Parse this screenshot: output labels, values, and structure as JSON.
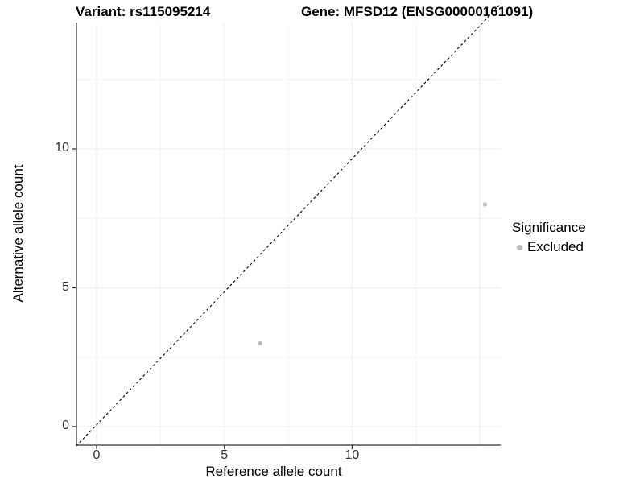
{
  "chart_data": {
    "type": "scatter",
    "titles": {
      "variant": "Variant: rs115095214",
      "gene": "Gene: MFSD12 (ENSG00000161091)"
    },
    "xlabel": "Reference allele count",
    "ylabel": "Alternative allele count",
    "x_ticks": [
      0,
      5,
      10
    ],
    "y_ticks": [
      0,
      5,
      10
    ],
    "xlim": [
      -0.8,
      15.8
    ],
    "ylim": [
      -0.7,
      15.2
    ],
    "grid": {
      "x_major": [
        0,
        5,
        10,
        15
      ],
      "x_minor": [
        2.5,
        7.5,
        12.5
      ],
      "y_major": [
        0,
        5,
        10
      ],
      "y_minor": [
        2.5,
        7.5,
        12.5
      ]
    },
    "identity_line": {
      "style": "dashed",
      "color": "#000000",
      "from": [
        -0.8,
        -0.7
      ],
      "to": [
        15.8,
        15.2
      ]
    },
    "series": [
      {
        "name": "Excluded",
        "color": "#bdbdbd",
        "points": [
          [
            6.4,
            3
          ],
          [
            15.2,
            8
          ]
        ]
      }
    ],
    "legend": {
      "title": "Significance",
      "position": "right",
      "entries": [
        {
          "label": "Excluded",
          "color": "#bdbdbd"
        }
      ]
    },
    "colors": {
      "background": "#ffffff",
      "grid_major": "#ececec",
      "grid_minor": "#f4f4f4",
      "axis": "#333333",
      "text": "#000000",
      "point": "#bdbdbd"
    }
  }
}
